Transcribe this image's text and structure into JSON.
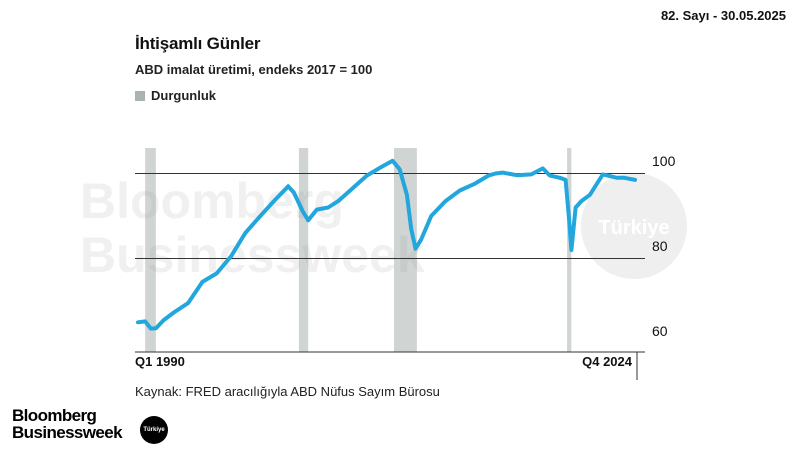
{
  "header": {
    "issue": "82. Sayı - 30.05.2025"
  },
  "chart_data": {
    "type": "line",
    "title": "İhtişamlı Günler",
    "subtitle": "ABD imalat üretimi, endeks 2017 = 100",
    "legend": [
      {
        "label": "Durgunluk",
        "color": "#aab3ae"
      }
    ],
    "x_start_label": "Q1 1990",
    "x_end_label": "Q4 2024",
    "x_range": [
      1990.0,
      2024.75
    ],
    "ylim": [
      55,
      103
    ],
    "y_ticks": [
      100,
      80,
      60
    ],
    "gridlines": [
      97,
      77
    ],
    "recessions": [
      [
        1990.5,
        1991.25
      ],
      [
        2001.25,
        2001.9
      ],
      [
        2007.9,
        2009.5
      ],
      [
        2020.0,
        2020.3
      ]
    ],
    "series": [
      {
        "color": "#22a6de",
        "points": [
          [
            1990.0,
            62.0
          ],
          [
            1990.5,
            62.2
          ],
          [
            1990.9,
            60.5
          ],
          [
            1991.25,
            60.6
          ],
          [
            1991.8,
            62.5
          ],
          [
            1992.5,
            64.3
          ],
          [
            1993.5,
            66.5
          ],
          [
            1994.5,
            71.5
          ],
          [
            1995.5,
            73.5
          ],
          [
            1996.5,
            77.5
          ],
          [
            1997.5,
            83.0
          ],
          [
            1998.5,
            86.8
          ],
          [
            1999.5,
            90.5
          ],
          [
            2000.5,
            94.0
          ],
          [
            2000.9,
            92.5
          ],
          [
            2001.5,
            88.2
          ],
          [
            2001.9,
            86.0
          ],
          [
            2002.5,
            88.5
          ],
          [
            2003.3,
            89.0
          ],
          [
            2004.0,
            90.5
          ],
          [
            2005.0,
            93.5
          ],
          [
            2006.0,
            96.5
          ],
          [
            2007.0,
            98.5
          ],
          [
            2007.8,
            100.0
          ],
          [
            2008.3,
            98.0
          ],
          [
            2008.8,
            92.0
          ],
          [
            2009.1,
            84.0
          ],
          [
            2009.4,
            79.3
          ],
          [
            2009.8,
            81.5
          ],
          [
            2010.5,
            87.0
          ],
          [
            2011.5,
            90.5
          ],
          [
            2012.5,
            93.0
          ],
          [
            2013.5,
            94.5
          ],
          [
            2014.5,
            96.5
          ],
          [
            2015.0,
            97.0
          ],
          [
            2015.5,
            97.2
          ],
          [
            2016.5,
            96.6
          ],
          [
            2017.5,
            96.8
          ],
          [
            2018.3,
            98.2
          ],
          [
            2018.8,
            96.5
          ],
          [
            2019.5,
            96.0
          ],
          [
            2019.9,
            95.5
          ],
          [
            2020.15,
            86.0
          ],
          [
            2020.3,
            79.0
          ],
          [
            2020.6,
            89.0
          ],
          [
            2021.0,
            90.5
          ],
          [
            2021.6,
            92.0
          ],
          [
            2022.5,
            96.8
          ],
          [
            2023.5,
            96.0
          ],
          [
            2024.0,
            96.0
          ],
          [
            2024.75,
            95.5
          ]
        ]
      }
    ],
    "source": "Kaynak: FRED aracılığıyla ABD Nüfus Sayım Bürosu"
  },
  "watermark": {
    "line1": "Bloomberg",
    "line2": "Businessweek",
    "badge": "Türkiye"
  },
  "brand": {
    "line1": "Bloomberg",
    "line2": "Businessweek",
    "badge": "Türkiye"
  },
  "colors": {
    "line": "#22a6de",
    "recession": "#aab3ae",
    "gridline": "#333333"
  }
}
